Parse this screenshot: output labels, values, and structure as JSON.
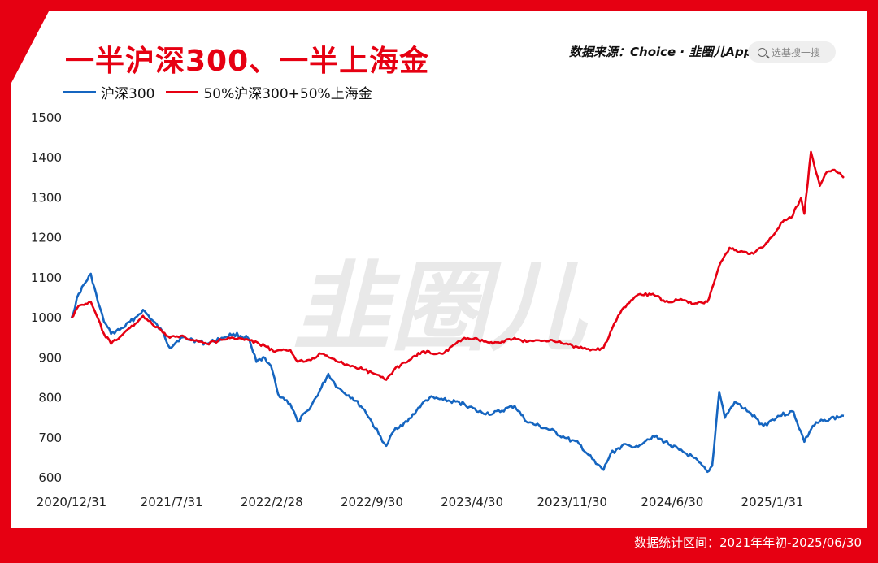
{
  "header": {
    "title": "一半沪深300、一半上海金",
    "source": "数据来源：Choice · 韭圈儿App",
    "search_placeholder": "选基搜一搜"
  },
  "footer": {
    "range_text": "数据统计区间：2021年年初-2025/06/30"
  },
  "watermark": {
    "text": "韭圈儿"
  },
  "colors": {
    "accent": "#e60012",
    "blue_series": "#1565c0",
    "red_series": "#e60012"
  },
  "chart_data": {
    "type": "line",
    "title": "一半沪深300、一半上海金",
    "x_tick_labels": [
      "2020/12/31",
      "2021/7/31",
      "2022/2/28",
      "2022/9/30",
      "2023/4/30",
      "2023/11/30",
      "2024/6/30",
      "2025/1/31"
    ],
    "yticks": [
      600,
      700,
      800,
      900,
      1000,
      1100,
      1200,
      1300,
      1400,
      1500
    ],
    "ylim": [
      580,
      1500
    ],
    "x_range": [
      "2020-12-31",
      "2025-06-30"
    ],
    "grid": false,
    "legend_position": "top-left",
    "series": [
      {
        "name": "沪深300",
        "color": "#1565c0",
        "points": [
          [
            "2020-12-31",
            1000
          ],
          [
            "2021-01-15",
            1060
          ],
          [
            "2021-02-10",
            1110
          ],
          [
            "2021-02-25",
            1040
          ],
          [
            "2021-03-10",
            990
          ],
          [
            "2021-03-25",
            960
          ],
          [
            "2021-04-20",
            975
          ],
          [
            "2021-05-15",
            1000
          ],
          [
            "2021-06-01",
            1020
          ],
          [
            "2021-06-20",
            995
          ],
          [
            "2021-07-15",
            960
          ],
          [
            "2021-07-28",
            925
          ],
          [
            "2021-08-20",
            950
          ],
          [
            "2021-09-15",
            945
          ],
          [
            "2021-10-15",
            935
          ],
          [
            "2021-11-15",
            950
          ],
          [
            "2021-12-10",
            960
          ],
          [
            "2022-01-10",
            950
          ],
          [
            "2022-01-28",
            890
          ],
          [
            "2022-02-15",
            900
          ],
          [
            "2022-02-28",
            880
          ],
          [
            "2022-03-15",
            810
          ],
          [
            "2022-04-10",
            785
          ],
          [
            "2022-04-26",
            740
          ],
          [
            "2022-05-20",
            770
          ],
          [
            "2022-06-15",
            825
          ],
          [
            "2022-06-30",
            860
          ],
          [
            "2022-07-20",
            825
          ],
          [
            "2022-08-20",
            800
          ],
          [
            "2022-09-15",
            770
          ],
          [
            "2022-10-15",
            710
          ],
          [
            "2022-10-31",
            680
          ],
          [
            "2022-11-20",
            725
          ],
          [
            "2022-12-15",
            740
          ],
          [
            "2023-01-15",
            785
          ],
          [
            "2023-01-31",
            800
          ],
          [
            "2023-03-01",
            795
          ],
          [
            "2023-04-15",
            785
          ],
          [
            "2023-05-15",
            765
          ],
          [
            "2023-06-15",
            760
          ],
          [
            "2023-07-31",
            780
          ],
          [
            "2023-08-25",
            740
          ],
          [
            "2023-10-15",
            720
          ],
          [
            "2023-11-15",
            700
          ],
          [
            "2023-12-15",
            685
          ],
          [
            "2024-01-20",
            635
          ],
          [
            "2024-02-05",
            620
          ],
          [
            "2024-02-20",
            660
          ],
          [
            "2024-03-15",
            680
          ],
          [
            "2024-04-15",
            680
          ],
          [
            "2024-05-20",
            705
          ],
          [
            "2024-06-15",
            690
          ],
          [
            "2024-07-15",
            670
          ],
          [
            "2024-08-15",
            650
          ],
          [
            "2024-09-13",
            615
          ],
          [
            "2024-09-23",
            630
          ],
          [
            "2024-10-08",
            815
          ],
          [
            "2024-10-20",
            750
          ],
          [
            "2024-11-10",
            790
          ],
          [
            "2024-12-10",
            765
          ],
          [
            "2025-01-10",
            730
          ],
          [
            "2025-02-10",
            755
          ],
          [
            "2025-03-15",
            765
          ],
          [
            "2025-04-07",
            690
          ],
          [
            "2025-04-25",
            730
          ],
          [
            "2025-05-20",
            745
          ],
          [
            "2025-06-30",
            755
          ]
        ]
      },
      {
        "name": "50%沪深300+50%上海金",
        "color": "#e60012",
        "points": [
          [
            "2020-12-31",
            1000
          ],
          [
            "2021-01-15",
            1030
          ],
          [
            "2021-02-10",
            1040
          ],
          [
            "2021-03-10",
            960
          ],
          [
            "2021-03-25",
            935
          ],
          [
            "2021-04-20",
            960
          ],
          [
            "2021-05-15",
            985
          ],
          [
            "2021-06-01",
            1005
          ],
          [
            "2021-06-20",
            985
          ],
          [
            "2021-07-28",
            950
          ],
          [
            "2021-08-20",
            955
          ],
          [
            "2021-09-15",
            945
          ],
          [
            "2021-10-15",
            935
          ],
          [
            "2021-11-15",
            945
          ],
          [
            "2021-12-10",
            950
          ],
          [
            "2022-01-10",
            945
          ],
          [
            "2022-02-15",
            930
          ],
          [
            "2022-03-08",
            915
          ],
          [
            "2022-04-10",
            920
          ],
          [
            "2022-04-26",
            890
          ],
          [
            "2022-05-20",
            895
          ],
          [
            "2022-06-15",
            910
          ],
          [
            "2022-07-20",
            890
          ],
          [
            "2022-08-20",
            880
          ],
          [
            "2022-09-15",
            870
          ],
          [
            "2022-10-31",
            845
          ],
          [
            "2022-11-20",
            875
          ],
          [
            "2022-12-15",
            890
          ],
          [
            "2023-01-15",
            915
          ],
          [
            "2023-02-28",
            910
          ],
          [
            "2023-04-15",
            950
          ],
          [
            "2023-05-15",
            945
          ],
          [
            "2023-06-15",
            935
          ],
          [
            "2023-07-31",
            950
          ],
          [
            "2023-08-25",
            940
          ],
          [
            "2023-10-15",
            945
          ],
          [
            "2023-11-15",
            935
          ],
          [
            "2023-12-15",
            925
          ],
          [
            "2024-01-20",
            920
          ],
          [
            "2024-02-05",
            925
          ],
          [
            "2024-02-20",
            965
          ],
          [
            "2024-03-15",
            1020
          ],
          [
            "2024-04-15",
            1055
          ],
          [
            "2024-05-20",
            1060
          ],
          [
            "2024-06-15",
            1040
          ],
          [
            "2024-07-15",
            1045
          ],
          [
            "2024-08-15",
            1035
          ],
          [
            "2024-09-13",
            1040
          ],
          [
            "2024-09-23",
            1075
          ],
          [
            "2024-10-08",
            1130
          ],
          [
            "2024-10-30",
            1175
          ],
          [
            "2024-11-20",
            1165
          ],
          [
            "2024-12-20",
            1160
          ],
          [
            "2025-01-20",
            1190
          ],
          [
            "2025-02-20",
            1240
          ],
          [
            "2025-03-10",
            1250
          ],
          [
            "2025-03-31",
            1300
          ],
          [
            "2025-04-07",
            1260
          ],
          [
            "2025-04-21",
            1415
          ],
          [
            "2025-05-10",
            1330
          ],
          [
            "2025-05-25",
            1365
          ],
          [
            "2025-06-10",
            1370
          ],
          [
            "2025-06-30",
            1350
          ]
        ]
      }
    ]
  }
}
